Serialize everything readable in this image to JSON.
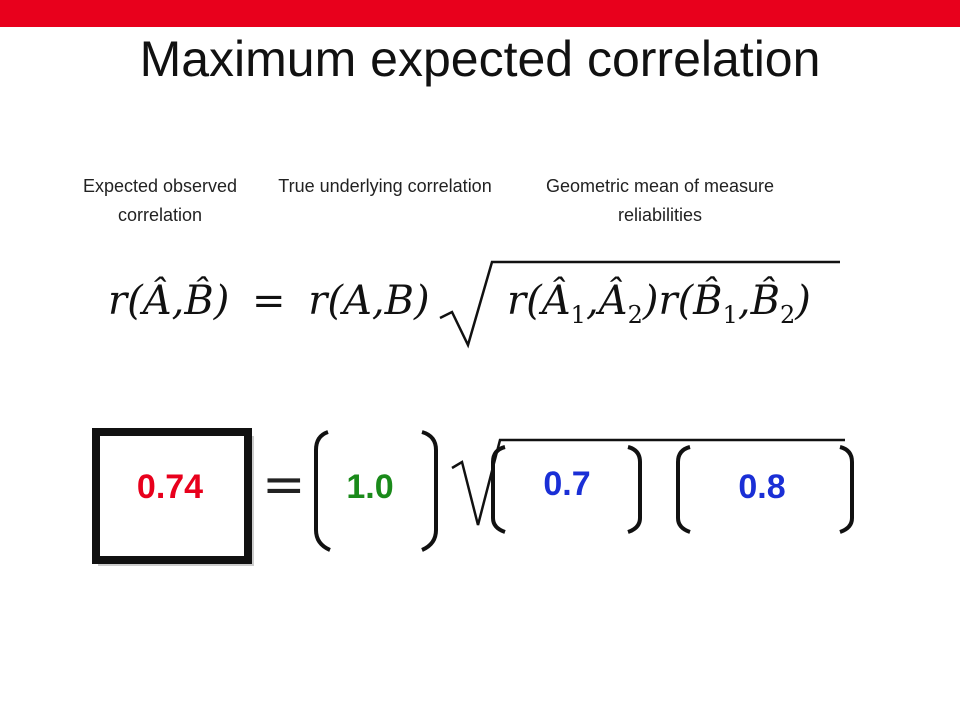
{
  "header": {
    "title": "Maximum expected correlation"
  },
  "labels": [
    "Expected observed correlation",
    "True underlying correlation",
    "Geometric mean of measure reliabilities"
  ],
  "formula": {
    "left": "r(Â,B̂)",
    "equals": "=",
    "middle": "r(A,B)",
    "radicand": [
      "r(Â",
      "1",
      ",Â",
      "2",
      ")r(B̂",
      "1",
      ",B̂",
      "2",
      ")"
    ]
  },
  "example": {
    "observed": "0.74",
    "equals": "=",
    "true": "1.0",
    "reliability_a": "0.7",
    "reliability_b": "0.8"
  }
}
